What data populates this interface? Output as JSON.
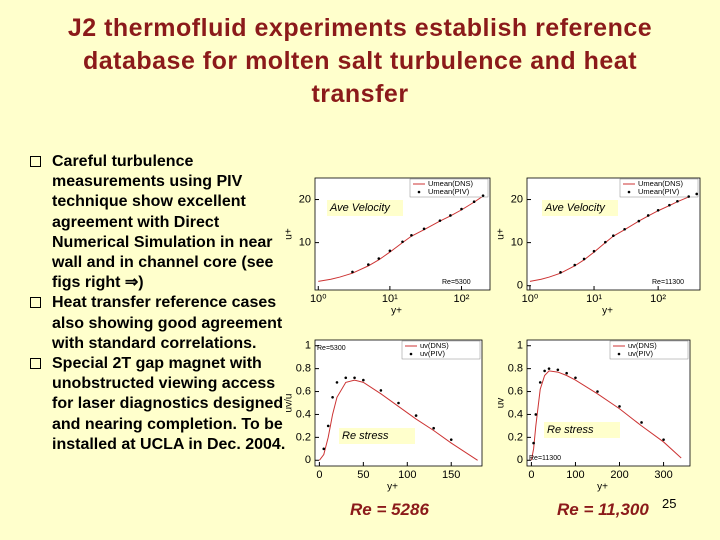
{
  "title": "J2 thermofluid experiments establish reference database for molten salt turbulence and heat transfer",
  "bullets": [
    "Careful turbulence measurements using PIV technique show excellent agreement with Direct Numerical Simulation in near wall and in channel core  (see figs right ⇒)",
    "Heat transfer reference cases also showing good agreement with standard correlations.",
    "Special 2T gap magnet with unobstructed viewing access for laser diagnostics designed and nearing completion. To be installed at UCLA in Dec. 2004."
  ],
  "footer": {
    "left": "Re = 5286",
    "right": "Re = 11,300",
    "page_number": "25"
  },
  "chart_data": [
    {
      "type": "line",
      "label": "Ave Velocity",
      "annotation": "Re=5300",
      "x_label": "y+",
      "y_label": "u+",
      "xscale": "log",
      "x": [
        1,
        1.5,
        2,
        3,
        5,
        7,
        10,
        15,
        20,
        30,
        50,
        70,
        100,
        150,
        200
      ],
      "series": [
        {
          "name": "Umean(DNS)",
          "color": "#cc3333",
          "style": "line",
          "values": [
            1,
            1.5,
            2,
            2.9,
            4.6,
            6,
            7.8,
            10,
            11.5,
            13,
            15,
            16.2,
            17.6,
            19.4,
            20.8
          ]
        },
        {
          "name": "Umean(PIV)",
          "color": "#000000",
          "style": "points",
          "values": [
            null,
            null,
            null,
            3.2,
            4.9,
            6.3,
            8.1,
            10.2,
            11.7,
            13.2,
            15.1,
            16.3,
            17.8,
            19.5,
            20.9
          ]
        }
      ],
      "xlim": [
        0.9,
        250
      ],
      "xticks": [
        {
          "value": 1,
          "label": "10⁰"
        },
        {
          "value": 10,
          "label": "10¹"
        },
        {
          "value": 100,
          "label": "10²"
        }
      ],
      "ylim": [
        -1,
        25
      ],
      "yticks": [
        10,
        20
      ]
    },
    {
      "type": "line",
      "label": "Ave Velocity",
      "annotation": "Re=11300",
      "x_label": "y+",
      "y_label": "u+",
      "xscale": "log",
      "x": [
        1,
        1.5,
        2,
        3,
        5,
        7,
        10,
        15,
        20,
        30,
        50,
        70,
        100,
        150,
        200,
        300,
        400
      ],
      "series": [
        {
          "name": "Umean(DNS)",
          "color": "#cc3333",
          "style": "line",
          "values": [
            1,
            1.5,
            2,
            2.9,
            4.6,
            6,
            7.8,
            10,
            11.5,
            13,
            15,
            16.2,
            17.4,
            18.6,
            19.5,
            20.6,
            21.2
          ]
        },
        {
          "name": "Umean(PIV)",
          "color": "#000000",
          "style": "points",
          "values": [
            null,
            null,
            null,
            3.1,
            4.8,
            6.2,
            8,
            10.1,
            11.6,
            13.1,
            15,
            16.3,
            17.5,
            18.7,
            19.6,
            20.7,
            21.3
          ]
        }
      ],
      "xlim": [
        0.9,
        450
      ],
      "xticks": [
        {
          "value": 1,
          "label": "10⁰"
        },
        {
          "value": 10,
          "label": "10¹"
        },
        {
          "value": 100,
          "label": "10²"
        }
      ],
      "ylim": [
        -1,
        25
      ],
      "yticks": [
        0,
        10,
        20
      ]
    },
    {
      "type": "line",
      "label": "Re stress",
      "annotation": "Re=5300",
      "x_label": "y+",
      "y_label": "uv/u",
      "x": [
        0,
        5,
        10,
        15,
        20,
        30,
        40,
        50,
        70,
        90,
        110,
        130,
        150,
        170,
        180
      ],
      "series": [
        {
          "name": "uv(DNS)",
          "color": "#cc3333",
          "style": "line",
          "values": [
            0,
            0.05,
            0.2,
            0.4,
            0.55,
            0.68,
            0.7,
            0.68,
            0.58,
            0.47,
            0.36,
            0.26,
            0.15,
            0.05,
            0
          ]
        },
        {
          "name": "uv(PIV)",
          "color": "#000000",
          "style": "points",
          "values": [
            null,
            0.1,
            0.3,
            0.55,
            0.68,
            0.72,
            0.72,
            0.7,
            0.61,
            0.5,
            0.39,
            0.28,
            0.18,
            null,
            null
          ]
        }
      ],
      "xlim": [
        -5,
        185
      ],
      "xticks": [
        0,
        50,
        100,
        150
      ],
      "ylim": [
        -0.05,
        1.05
      ],
      "yticks": [
        0,
        0.2,
        0.4,
        0.6,
        0.8,
        1
      ]
    },
    {
      "type": "line",
      "label": "Re stress",
      "annotation": "Re=11300",
      "x_label": "y+",
      "y_label": "uv",
      "x": [
        0,
        5,
        10,
        20,
        30,
        40,
        60,
        80,
        100,
        150,
        200,
        250,
        300,
        340
      ],
      "series": [
        {
          "name": "uv(DNS)",
          "color": "#cc3333",
          "style": "line",
          "values": [
            0,
            0.1,
            0.3,
            0.62,
            0.74,
            0.78,
            0.77,
            0.74,
            0.7,
            0.58,
            0.45,
            0.3,
            0.16,
            0.02
          ]
        },
        {
          "name": "uv(PIV)",
          "color": "#000000",
          "style": "points",
          "values": [
            null,
            0.15,
            0.4,
            0.68,
            0.78,
            0.8,
            0.79,
            0.76,
            0.72,
            0.6,
            0.47,
            0.33,
            0.18,
            null
          ]
        }
      ],
      "xlim": [
        -10,
        360
      ],
      "xticks": [
        0,
        100,
        200,
        300
      ],
      "ylim": [
        -0.05,
        1.05
      ],
      "yticks": [
        0,
        0.2,
        0.4,
        0.6,
        0.8,
        1
      ]
    }
  ]
}
